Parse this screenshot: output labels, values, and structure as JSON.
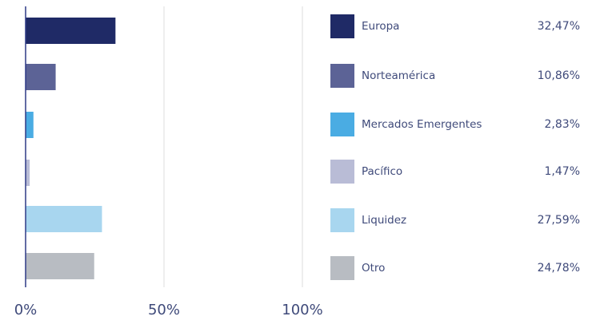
{
  "colors": {
    "axis": "#2e3a86",
    "grid": "#dcdcdc",
    "tick_text": "#3f4a7a"
  },
  "chart_data": {
    "type": "bar",
    "orientation": "horizontal",
    "categories": [
      "Europa",
      "Norteamérica",
      "Mercados Emergentes",
      "Pacífico",
      "Liquidez",
      "Otro"
    ],
    "values": [
      32.47,
      10.86,
      2.83,
      1.47,
      27.59,
      24.78
    ],
    "value_labels": [
      "32,47%",
      "10,86%",
      "2,83%",
      "1,47%",
      "27,59%",
      "24,78%"
    ],
    "colors": [
      "#1f2a66",
      "#5c6396",
      "#4aace3",
      "#b9bcd6",
      "#a8d6ef",
      "#b8bcc2"
    ],
    "xlim": [
      0,
      100
    ],
    "xticks": [
      0,
      50,
      100
    ],
    "xtick_labels": [
      "0%",
      "50%",
      "100%"
    ],
    "grid": true,
    "legend": "right"
  }
}
